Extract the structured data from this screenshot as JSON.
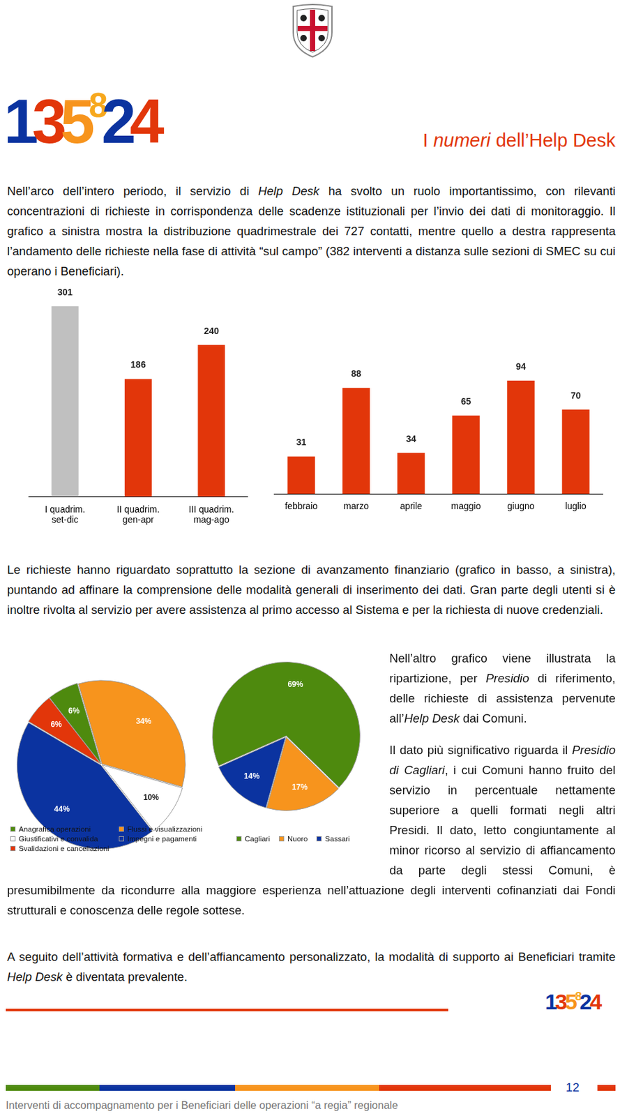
{
  "header": {
    "logo": "135824",
    "title": [
      {
        "text": "I "
      },
      {
        "text": "numeri",
        "style": "italic"
      },
      {
        "text": " dell’Help Desk"
      }
    ]
  },
  "paragraphs": [
    [
      {
        "text": "Nell’arco dell’intero periodo, il servizio di "
      },
      {
        "text": "Help Desk",
        "style": "italic"
      },
      {
        "text": " ha svolto un ruolo importantissimo, con rilevanti concentrazioni di richieste in corrispondenza delle scadenze istituzionali per l’invio dei dati di monitoraggio. Il grafico a sinistra mostra la distribuzione quadrimestrale dei 727 contatti, mentre quello a destra rappresenta l’andamento delle richieste nella fase di attività “sul campo” (382 interventi a distanza sulle sezioni di SMEC su cui operano i Beneficiari)."
      }
    ],
    [
      {
        "text": "Le richieste hanno riguardato soprattutto la sezione di avanzamento finanziario (grafico in basso, a sinistra), puntando ad affinare la comprensione delle modalità generali di inserimento dei dati. Gran parte degli utenti si è inoltre rivolta al servizio per avere assistenza al primo accesso al Sistema e per la richiesta di nuove credenziali."
      }
    ],
    [
      {
        "text": "Nell’altro grafico viene illustrata la ripartizione, per "
      },
      {
        "text": "Presidio",
        "style": "italic"
      },
      {
        "text": " di riferimento, delle richieste di assistenza pervenute all’"
      },
      {
        "text": "Help Desk",
        "style": "italic"
      },
      {
        "text": " dai Comuni."
      }
    ],
    [
      {
        "text": "Il dato più significativo riguarda il "
      },
      {
        "text": "Presidio di Cagliari",
        "style": "italic"
      },
      {
        "text": ", i cui Comuni hanno fruito del servizio in percentuale nettamente superiore a quelli formati negli altri Presidi. Il dato, letto congiuntamente al minor ricorso al servizio di affiancamento da parte degli stessi Comuni, è presumibilmente da ricondurre alla maggiore esperienza nell’attuazione degli interventi cofinanziati dai Fondi strutturali e conoscenza delle regole sottese."
      }
    ],
    [
      {
        "text": "A seguito dell’attività formativa e dell’affiancamento personalizzato, la modalità di supporto ai Beneficiari tramite "
      },
      {
        "text": "Help Desk",
        "style": "italic"
      },
      {
        "text": " è diventata prevalente."
      }
    ]
  ],
  "chart_data": [
    {
      "type": "bar",
      "categories": [
        [
          "I quadrim.",
          "set-dic"
        ],
        [
          "II quadrim.",
          "gen-apr"
        ],
        [
          "III quadrim.",
          "mag-ago"
        ]
      ],
      "values": [
        301,
        186,
        240
      ],
      "colors": [
        "#c0c0c0",
        "#e2360a",
        "#e2360a"
      ],
      "ylim": [
        0,
        301
      ],
      "grid": false,
      "data_labels": true,
      "tick_labels": "x"
    },
    {
      "type": "bar",
      "categories": [
        "febbraio",
        "marzo",
        "aprile",
        "maggio",
        "giugno",
        "luglio"
      ],
      "values": [
        31,
        88,
        34,
        65,
        94,
        70
      ],
      "color": "#e2360a",
      "ylim": [
        0,
        94
      ],
      "grid": false,
      "data_labels": true,
      "tick_labels": "x"
    },
    {
      "type": "pie",
      "categories": [
        "Anagrafica operazioni",
        "Flussi e visualizzazioni",
        "Giustificativi e convalida",
        "Impegni e pagamenti",
        "Svalidazioni e cancellazioni"
      ],
      "values": [
        6,
        34,
        10,
        44,
        6
      ],
      "value_labels": [
        "6%",
        "34%",
        "10%",
        "44%",
        "6%"
      ],
      "colors": [
        "#4e8a0e",
        "#f7941d",
        "#ffffff",
        "#0b33a0",
        "#e2360a"
      ],
      "data_labels": true,
      "legend": "bottom"
    },
    {
      "type": "pie",
      "categories": [
        "Cagliari",
        "Nuoro",
        "Sassari"
      ],
      "values": [
        69,
        17,
        14
      ],
      "value_labels": [
        "69%",
        "17%",
        "14%"
      ],
      "colors": [
        "#4e8a0e",
        "#f7941d",
        "#0b33a0"
      ],
      "data_labels": true,
      "legend": "bottom"
    }
  ],
  "footer": {
    "logo": "135824",
    "page": 12,
    "text": "Interventi di accompagnamento per i Beneficiari delle operazioni “a regia” regionale"
  }
}
